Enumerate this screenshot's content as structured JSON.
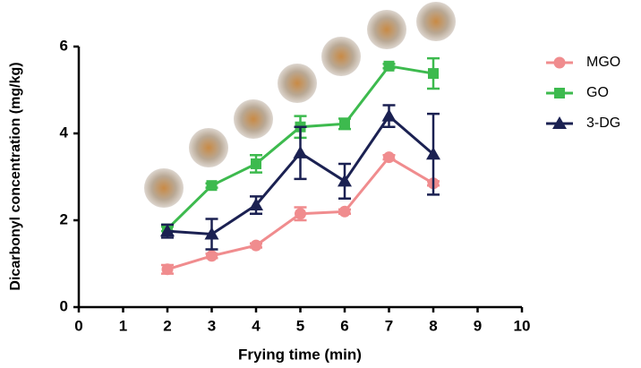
{
  "chart_data": {
    "type": "line",
    "xlabel": "Frying time (min)",
    "ylabel": "Dicarbonyl concentration (mg/kg)",
    "x": [
      2,
      3,
      4,
      5,
      6,
      7,
      8
    ],
    "series": [
      {
        "name": "MGO",
        "color": "#f08c8e",
        "marker": "circle",
        "values": [
          0.87,
          1.18,
          1.42,
          2.15,
          2.2,
          3.45,
          2.85
        ],
        "errors": [
          0.1,
          0.05,
          0.05,
          0.15,
          0.05,
          0.05,
          0.05
        ]
      },
      {
        "name": "GO",
        "color": "#3dba4e",
        "marker": "square",
        "values": [
          1.8,
          2.8,
          3.3,
          4.15,
          4.22,
          5.55,
          5.38
        ],
        "errors": [
          0.05,
          0.05,
          0.2,
          0.25,
          0.12,
          0.05,
          0.35
        ]
      },
      {
        "name": "3-DG",
        "color": "#1b2152",
        "marker": "triangle",
        "values": [
          1.75,
          1.68,
          2.35,
          3.55,
          2.9,
          4.4,
          3.52
        ],
        "errors": [
          0.15,
          0.35,
          0.2,
          0.6,
          0.4,
          0.25,
          0.93
        ]
      }
    ],
    "xlim": [
      0,
      10
    ],
    "xticks": [
      0,
      1,
      2,
      3,
      4,
      5,
      6,
      7,
      8,
      9,
      10
    ],
    "ylim": [
      0,
      6
    ],
    "yticks": [
      0,
      2,
      4,
      6
    ],
    "grid": false,
    "legend": "right"
  }
}
